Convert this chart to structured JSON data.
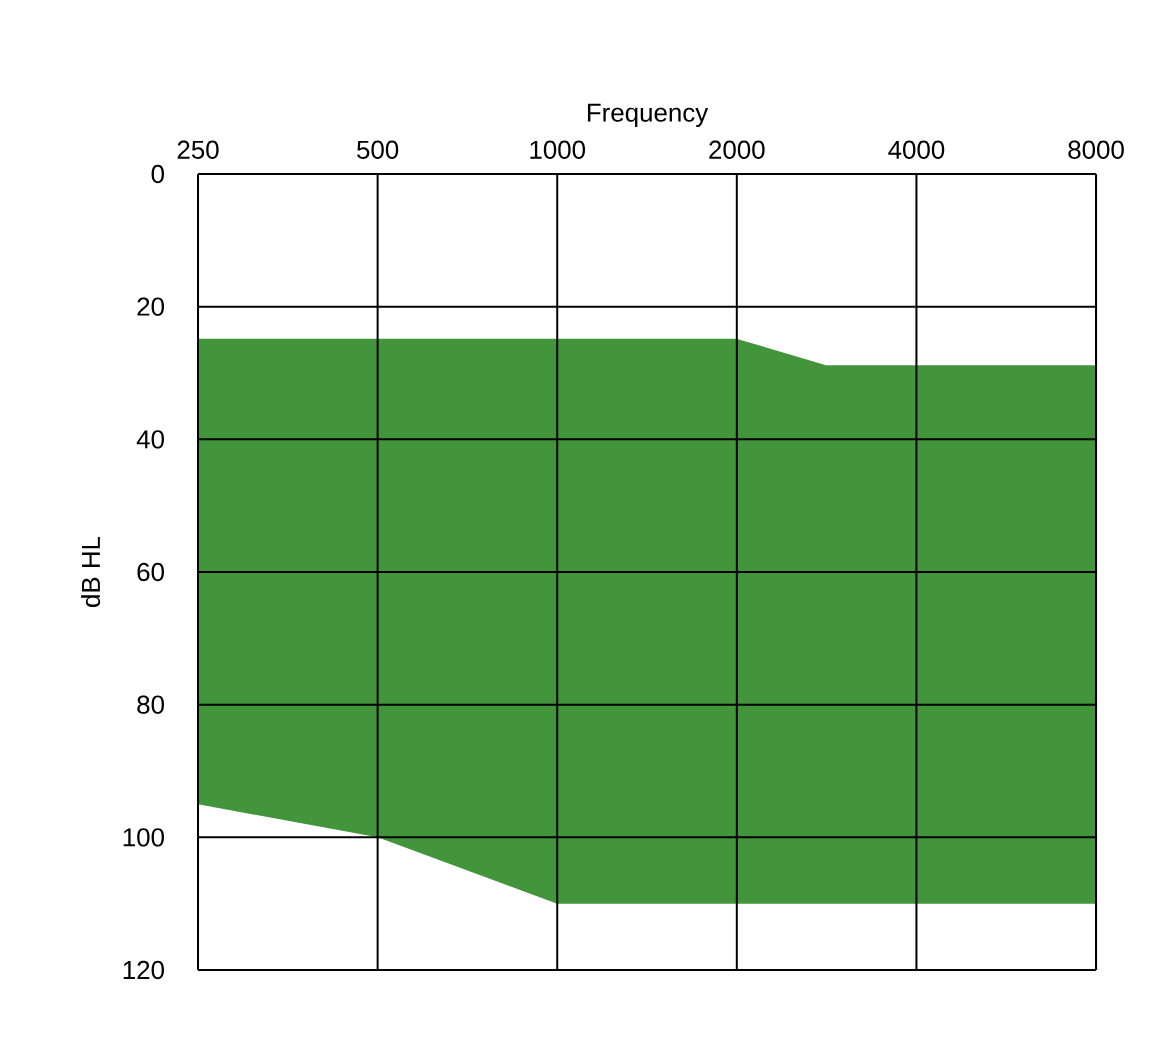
{
  "chart_data": {
    "type": "line",
    "xlabel": "Frequency",
    "ylabel": "dB HL",
    "log": "x",
    "grid": true,
    "xlim": [
      250,
      8000
    ],
    "xticks": [
      250,
      500,
      1000,
      2000,
      4000,
      8000
    ],
    "ylim": [
      120,
      0
    ],
    "yticks": [
      0,
      20,
      40,
      60,
      80,
      100,
      120
    ],
    "series": [
      {
        "color": "#43953b",
        "x": [
          250,
          500,
          1000,
          2000,
          2828,
          8000
        ],
        "values": [
          25,
          25,
          25,
          25,
          29,
          29
        ],
        "lower": [
          25,
          25,
          25,
          25,
          29,
          29
        ],
        "upper": [
          95,
          100,
          110,
          110,
          110,
          110
        ]
      }
    ]
  }
}
